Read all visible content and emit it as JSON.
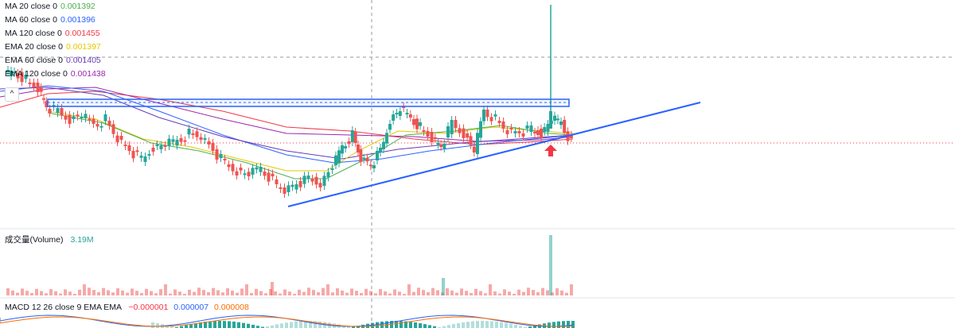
{
  "legend": [
    {
      "label": "MA 20 close 0",
      "value": "0.001392",
      "color": "#4caf50"
    },
    {
      "label": "MA 60 close 0",
      "value": "0.001396",
      "color": "#2962ff"
    },
    {
      "label": "MA 120 close 0",
      "value": "0.001455",
      "color": "#f23645"
    },
    {
      "label": "EMA 20 close 0",
      "value": "0.001397",
      "color": "#e6c700"
    },
    {
      "label": "EMA 60 close 0",
      "value": "0.001405",
      "color": "#673ab7"
    },
    {
      "label": "EMA 120 close 0",
      "value": "0.001438",
      "color": "#9c27b0"
    }
  ],
  "collapse_icon": "chevron-up-icon",
  "volume": {
    "label": "成交量(Volume)",
    "value": "3.19M",
    "value_color": "#26a69a"
  },
  "macd": {
    "label": "MACD 12 26 close 9 EMA EMA",
    "values": [
      {
        "v": "−0.000001",
        "color": "#f23645"
      },
      {
        "v": "0.000007",
        "color": "#2962ff"
      },
      {
        "v": "0.000008",
        "color": "#ff6d00"
      }
    ]
  },
  "colors": {
    "up": "#26a69a",
    "down": "#ef5350",
    "trendline": "#2962ff",
    "arrow": "#f23645"
  }
}
